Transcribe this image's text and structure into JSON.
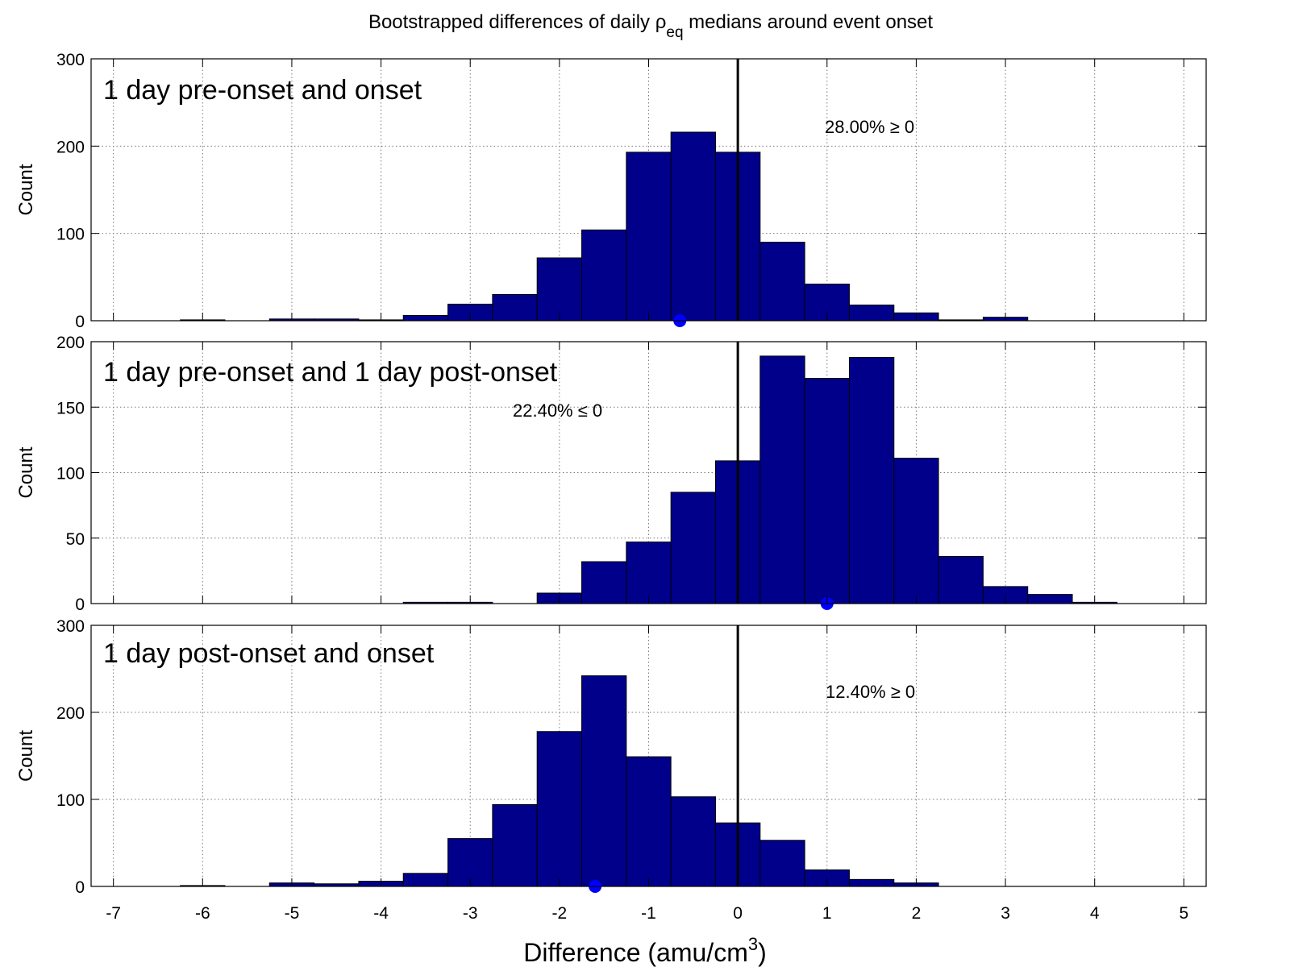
{
  "figure": {
    "title_main": "Bootstrapped differences of daily ",
    "title_symbol": "ρ",
    "title_subscript": "eq",
    "title_tail": " medians around event onset",
    "xlabel_main": "Difference (amu/cm",
    "xlabel_superscript": "3",
    "xlabel_tail": ")",
    "colors": {
      "bar": "#00008B",
      "bar_edge": "#000000",
      "marker": "#0000FF",
      "zero_line": "#000000"
    }
  },
  "chart_data": [
    {
      "type": "bar",
      "panel_title": "1 day pre-onset and onset",
      "annotation": "28.00% ≥ 0",
      "ylabel": "Count",
      "ylim": [
        0,
        300
      ],
      "yticks": [
        0,
        100,
        200,
        300
      ],
      "xlim": [
        -7.25,
        5.25
      ],
      "xticks": [
        -7,
        -6,
        -5,
        -4,
        -3,
        -2,
        -1,
        0,
        1,
        2,
        3,
        4,
        5
      ],
      "grid": true,
      "vline_x": 0,
      "marker_x": -0.65,
      "bin_width": 0.5,
      "bin_centers": [
        -6.0,
        -5.5,
        -5.0,
        -4.5,
        -4.0,
        -3.5,
        -3.0,
        -2.5,
        -2.0,
        -1.5,
        -1.0,
        -0.5,
        0.0,
        0.5,
        1.0,
        1.5,
        2.0,
        2.5,
        3.0
      ],
      "values": [
        1,
        0,
        2,
        2,
        1,
        6,
        19,
        30,
        72,
        104,
        193,
        216,
        193,
        90,
        42,
        18,
        9,
        1,
        4
      ]
    },
    {
      "type": "bar",
      "panel_title": "1 day pre-onset and 1 day post-onset",
      "annotation": "22.40% ≤ 0",
      "ylabel": "Count",
      "ylim": [
        0,
        200
      ],
      "yticks": [
        0,
        50,
        100,
        150,
        200
      ],
      "xlim": [
        -7.25,
        5.25
      ],
      "xticks": [
        -7,
        -6,
        -5,
        -4,
        -3,
        -2,
        -1,
        0,
        1,
        2,
        3,
        4,
        5
      ],
      "grid": true,
      "vline_x": 0,
      "marker_x": 1.0,
      "bin_width": 0.5,
      "bin_centers": [
        -3.5,
        -3.0,
        -2.5,
        -2.0,
        -1.5,
        -1.0,
        -0.5,
        0.0,
        0.5,
        1.0,
        1.5,
        2.0,
        2.5,
        3.0,
        3.5,
        4.0
      ],
      "values": [
        1,
        1,
        0,
        8,
        32,
        47,
        85,
        109,
        189,
        172,
        188,
        111,
        36,
        13,
        7,
        1
      ]
    },
    {
      "type": "bar",
      "panel_title": "1 day post-onset and onset",
      "annotation": "12.40% ≥ 0",
      "ylabel": "Count",
      "ylim": [
        0,
        300
      ],
      "yticks": [
        0,
        100,
        200,
        300
      ],
      "xlim": [
        -7.25,
        5.25
      ],
      "xticks": [
        -7,
        -6,
        -5,
        -4,
        -3,
        -2,
        -1,
        0,
        1,
        2,
        3,
        4,
        5
      ],
      "grid": true,
      "vline_x": 0,
      "marker_x": -1.6,
      "bin_width": 0.5,
      "bin_centers": [
        -6.0,
        -5.5,
        -5.0,
        -4.5,
        -4.0,
        -3.5,
        -3.0,
        -2.5,
        -2.0,
        -1.5,
        -1.0,
        -0.5,
        0.0,
        0.5,
        1.0,
        1.5,
        2.0
      ],
      "values": [
        1,
        0,
        4,
        3,
        6,
        15,
        55,
        94,
        178,
        242,
        149,
        103,
        73,
        53,
        19,
        8,
        4
      ]
    }
  ]
}
